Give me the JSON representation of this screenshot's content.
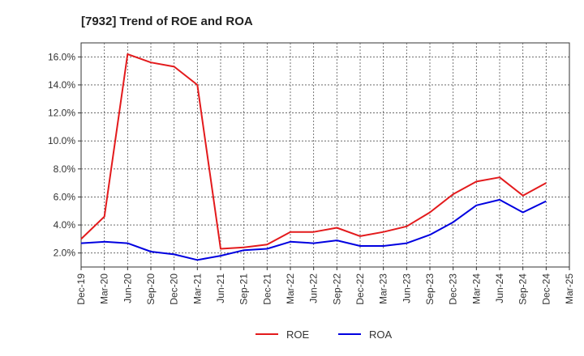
{
  "chart_data": {
    "type": "line",
    "title": "[7932]  Trend of ROE and ROA",
    "categories": [
      "Dec-19",
      "Mar-20",
      "Jun-20",
      "Sep-20",
      "Dec-20",
      "Mar-21",
      "Jun-21",
      "Sep-21",
      "Dec-21",
      "Mar-22",
      "Jun-22",
      "Sep-22",
      "Dec-22",
      "Mar-23",
      "Jun-23",
      "Sep-23",
      "Dec-23",
      "Mar-24",
      "Jun-24",
      "Sep-24",
      "Dec-24",
      "Mar-25"
    ],
    "y_tick_labels": [
      "2.0%",
      "4.0%",
      "6.0%",
      "8.0%",
      "10.0%",
      "12.0%",
      "14.0%",
      "16.0%"
    ],
    "y_ticks": [
      2,
      4,
      6,
      8,
      10,
      12,
      14,
      16
    ],
    "ylim": [
      1.0,
      17.0
    ],
    "grid": true,
    "legend_position": "bottom-center",
    "series": [
      {
        "name": "ROE",
        "color": "#e31a1c",
        "values": [
          3.0,
          4.6,
          16.2,
          15.6,
          15.3,
          14.0,
          2.3,
          2.4,
          2.6,
          3.5,
          3.5,
          3.8,
          3.2,
          3.5,
          3.9,
          4.9,
          6.2,
          7.1,
          7.4,
          6.1,
          7.0,
          null
        ]
      },
      {
        "name": "ROA",
        "color": "#0000e0",
        "values": [
          2.7,
          2.8,
          2.7,
          2.1,
          1.9,
          1.5,
          1.8,
          2.2,
          2.3,
          2.8,
          2.7,
          2.9,
          2.5,
          2.5,
          2.7,
          3.3,
          4.2,
          5.4,
          5.8,
          4.9,
          5.7,
          null
        ]
      }
    ]
  }
}
